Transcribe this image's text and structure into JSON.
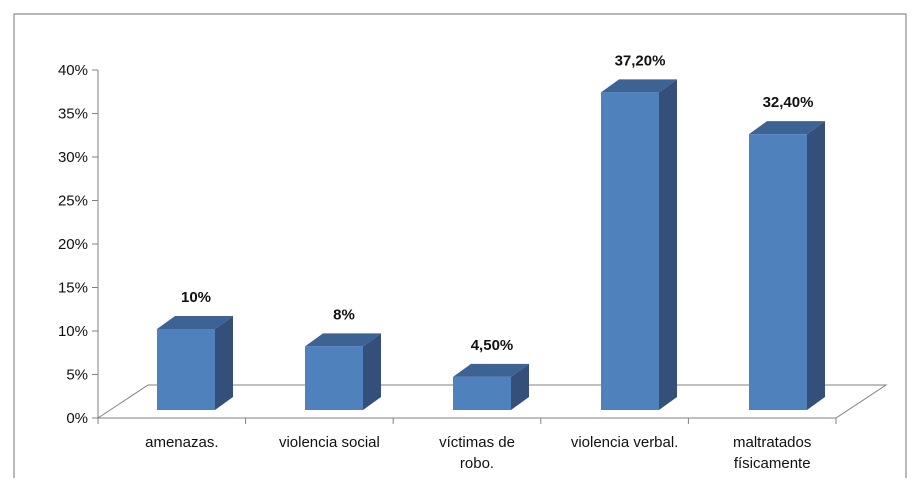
{
  "chart_data": {
    "type": "bar",
    "style": "3d-column",
    "categories": [
      [
        "amenazas."
      ],
      [
        "violencia social"
      ],
      [
        "víctimas de",
        "robo."
      ],
      [
        "violencia verbal."
      ],
      [
        "maltratados",
        "físicamente"
      ]
    ],
    "values": [
      10,
      8,
      4.5,
      37.2,
      32.4
    ],
    "data_labels": [
      "10%",
      "8%",
      "4,50%",
      "37,20%",
      "32,40%"
    ],
    "ylim": [
      0,
      40
    ],
    "yticks": [
      0,
      5,
      10,
      15,
      20,
      25,
      30,
      35,
      40
    ],
    "ytick_labels": [
      "0%",
      "5%",
      "10%",
      "15%",
      "20%",
      "25%",
      "30%",
      "35%",
      "40%"
    ],
    "grid": false,
    "legend": "none",
    "colors": {
      "bar_front": "#4F81BD",
      "bar_side": "#34507A",
      "bar_top": "#3C6394",
      "axis": "#808080",
      "border": "#8c8c8c"
    }
  }
}
